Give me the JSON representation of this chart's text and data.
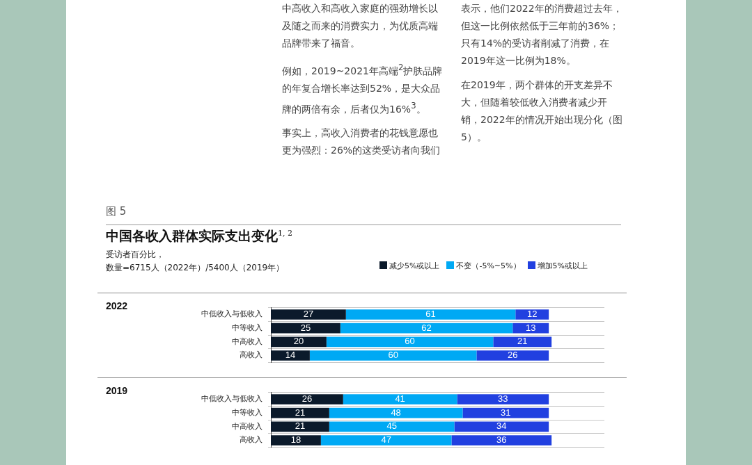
{
  "chart_data": [
    {
      "type": "bar",
      "orientation": "horizontal",
      "stacked": true,
      "data_labels": true,
      "tick_labels": "y",
      "grid": "y",
      "legend": "top right",
      "title": "中国各收入群体实际支出变化$^{1, 2}$",
      "subtitle": "受访者百分比，数量=6715人（2022年）/5400人（2019年）",
      "ylabel": "2022",
      "annotations": [
        "中高收入和高收入家庭的强劲增长以及随之而来的消费实力，为优质高端品牌带来了福音。",
        "例如，2019~2021年高端$^{2}$护肤品牌的年复合增长率达到52%，是大众品牌的两倍有余，后者仅为16%$^{3}$。",
        "事实上，高收入消费者的花钱意愿也更为强烈：26%的这类受访者向我们表示，他们2022年的消费超过去年，但这一比例依然低于三年前的36%；只有14%的受访者削减了消费，在2019年这一比例为18%。",
        "在2019年，两个群体的开支差异不大，但随着较低收入消费者减少开销，2022年的情况开始出现分化（图5）。",
        "图 5"
      ],
      "categories": [
        "中低收入与低收入",
        "中等收入",
        "中高收入",
        "高收入"
      ],
      "series": [
        {
          "name": "减少5%或以上",
          "color": "#0b1a2b",
          "values": [
            27,
            25,
            20,
            14
          ]
        },
        {
          "name": "不变（-5%~5%）",
          "color": "#00a9f4",
          "values": [
            61,
            62,
            60,
            60
          ]
        },
        {
          "name": "增加5%或以上",
          "color": "#2140e0",
          "values": [
            12,
            13,
            21,
            26
          ]
        }
      ]
    },
    {
      "type": "bar",
      "orientation": "horizontal",
      "stacked": true,
      "data_labels": true,
      "tick_labels": "y",
      "grid": "y",
      "ylabel": "2019",
      "categories": [
        "中低收入与低收入",
        "中等收入",
        "中高收入",
        "高收入"
      ],
      "series": [
        {
          "color": "#0b1a2b",
          "values": [
            26,
            21,
            21,
            18
          ]
        },
        {
          "color": "#00a9f4",
          "values": [
            41,
            48,
            45,
            47
          ]
        },
        {
          "color": "#2140e0",
          "values": [
            33,
            31,
            34,
            36
          ]
        }
      ]
    }
  ]
}
